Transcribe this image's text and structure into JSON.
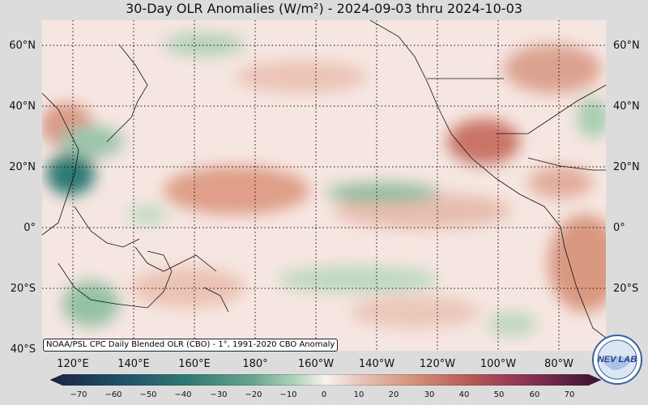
{
  "title": "30-Day OLR Anomalies (W/m²) - 2024-09-03 thru 2024-10-03",
  "credit": "NOAA/PSL CPC Daily Blended OLR (CBO) - 1°, 1991-2020 CBO Anomaly",
  "lat_labels": [
    "60°N",
    "40°N",
    "20°N",
    "0°",
    "20°S",
    "40°S"
  ],
  "lon_labels": [
    "120°E",
    "140°E",
    "160°E",
    "180°",
    "160°W",
    "140°W",
    "120°W",
    "100°W",
    "80°W"
  ],
  "colorbar_ticks": [
    "−70",
    "−60",
    "−50",
    "−40",
    "−30",
    "−20",
    "−10",
    "0",
    "10",
    "20",
    "30",
    "40",
    "50",
    "60",
    "70"
  ],
  "logo_text": "NEV LAB",
  "colors": {
    "negative_strong": "#1b5f66",
    "negative_mid": "#5a9c87",
    "negative_weak": "#a9cbb3",
    "neutral": "#f8ecea",
    "positive_weak": "#e6b8a7",
    "positive_mid": "#d48a75",
    "positive_strong": "#b85a52",
    "background": "#dcdcdc"
  }
}
